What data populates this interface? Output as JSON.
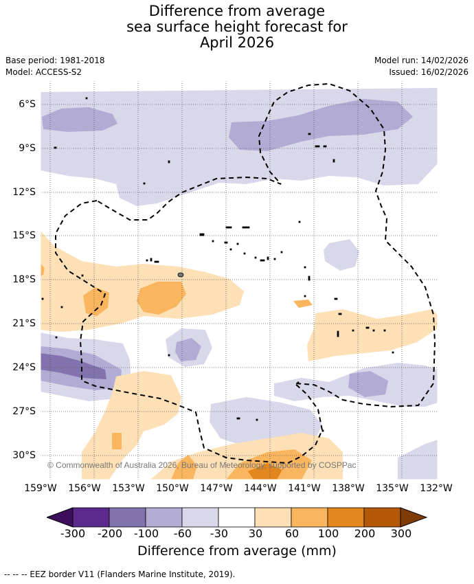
{
  "title": {
    "line1": "Difference from average",
    "line2": "sea surface height forecast for",
    "line3": "April 2026"
  },
  "meta": {
    "base_period": "Base period: 1981-2018",
    "model": "Model: ACCESS-S2",
    "model_run": "Model run: 14/02/2026",
    "issued": "Issued: 16/02/2026"
  },
  "axes": {
    "lat_ticks": [
      "6°S",
      "9°S",
      "12°S",
      "15°S",
      "18°S",
      "21°S",
      "24°S",
      "27°S",
      "30°S"
    ],
    "lon_ticks": [
      "159°W",
      "156°W",
      "153°W",
      "150°W",
      "147°W",
      "144°W",
      "141°W",
      "138°W",
      "135°W",
      "132°W"
    ]
  },
  "copyright": "© Commonwealth of Australia 2026, Bureau of Meteorology, supported by COSPPac",
  "colorbar": {
    "labels": [
      "-300",
      "-200",
      "-100",
      "-60",
      "-30",
      "30",
      "60",
      "100",
      "200",
      "300"
    ],
    "colors": [
      "#3b0f5c",
      "#5c2a8c",
      "#8272ad",
      "#b2acd4",
      "#d8d8ea",
      "#ffffff",
      "#fde0b5",
      "#fab65e",
      "#e4861e",
      "#b35806",
      "#7f3b08"
    ],
    "title": "Difference from average (mm)"
  },
  "footer": "--  --  -- EEZ border V11 (Flanders Marine Institute, 2019)."
}
